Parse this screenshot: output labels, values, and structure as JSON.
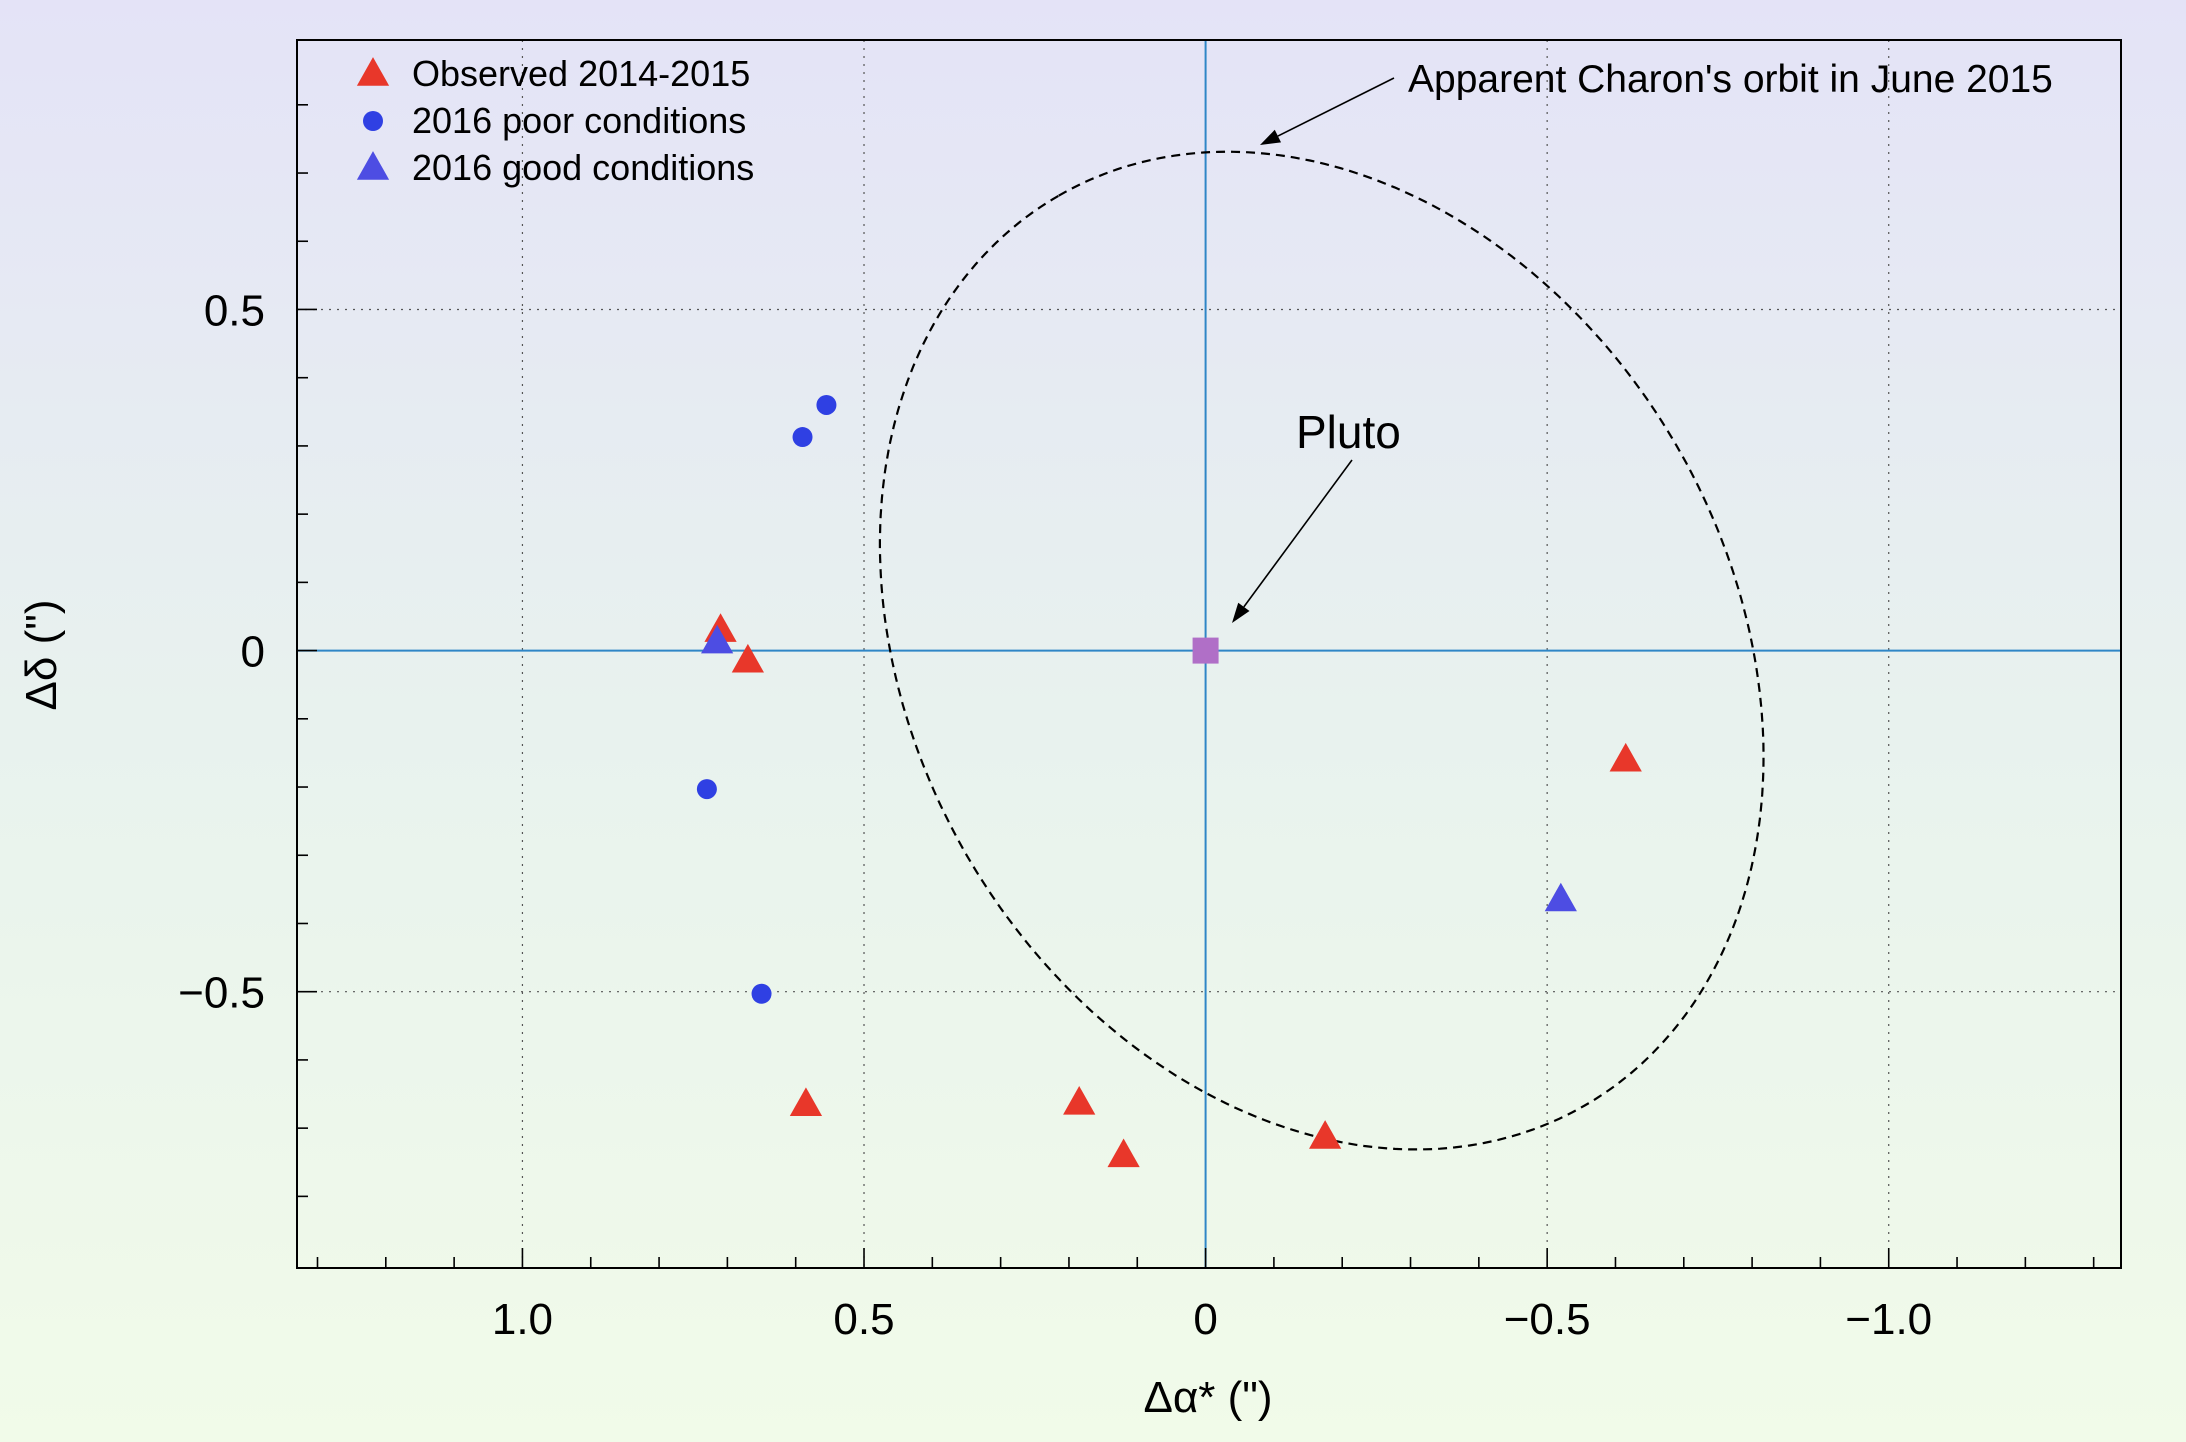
{
  "chart_data": {
    "type": "scatter",
    "xlabel": "Δα*  (\")",
    "ylabel": "Δδ (\")",
    "xlim": [
      1.33,
      -1.34
    ],
    "ylim": [
      -0.905,
      0.895
    ],
    "x_ticks": [
      1.0,
      0.5,
      0,
      -0.5,
      -1.0
    ],
    "x_tick_labels": [
      "1.0",
      "0.5",
      "0",
      "−0.5",
      "−1.0"
    ],
    "y_ticks": [
      0.5,
      0,
      -0.5
    ],
    "y_tick_labels": [
      "0.5",
      "0",
      "−0.5"
    ],
    "grid": true,
    "legend_position": "top-left",
    "series": [
      {
        "name": "Observed 2014-2015",
        "marker": "triangle",
        "color": "#e8372a",
        "points": [
          {
            "x": 0.71,
            "y": 0.03
          },
          {
            "x": 0.67,
            "y": -0.015
          },
          {
            "x": -0.615,
            "y": -0.16
          },
          {
            "x": 0.585,
            "y": -0.665
          },
          {
            "x": 0.185,
            "y": -0.663
          },
          {
            "x": 0.12,
            "y": -0.74
          },
          {
            "x": -0.175,
            "y": -0.713
          }
        ]
      },
      {
        "name": "2016  poor conditions",
        "marker": "circle",
        "color": "#2f40e3",
        "points": [
          {
            "x": 0.555,
            "y": 0.36
          },
          {
            "x": 0.59,
            "y": 0.313
          },
          {
            "x": 0.73,
            "y": -0.203
          },
          {
            "x": 0.65,
            "y": -0.503
          }
        ]
      },
      {
        "name": "2016 good conditions",
        "marker": "triangle",
        "color": "#4d4de3",
        "points": [
          {
            "x": 0.715,
            "y": 0.013
          },
          {
            "x": -0.52,
            "y": -0.365
          }
        ]
      }
    ],
    "pluto": {
      "label": "Pluto",
      "x": 0,
      "y": 0,
      "marker": "square",
      "color": "#b06fc7"
    },
    "orbit": {
      "label": "Apparent Charon's orbit in June 2015",
      "center": [
        -0.17,
        0.0
      ],
      "semi_axes": [
        0.77,
        0.6
      ],
      "rotation_deg": 60
    },
    "axis_line_color": "#2f86c6"
  }
}
